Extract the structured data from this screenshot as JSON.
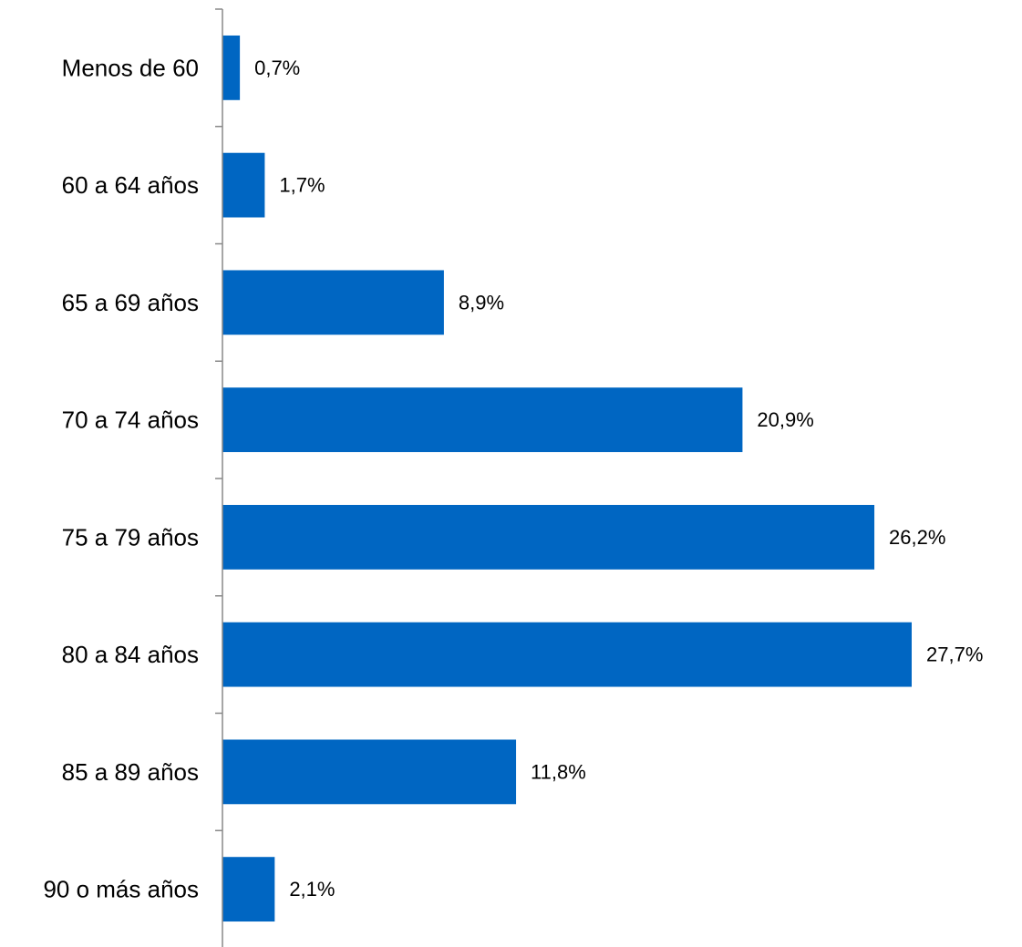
{
  "chart_data": {
    "type": "bar",
    "orientation": "horizontal",
    "title": "",
    "xlabel": "",
    "ylabel": "",
    "categories": [
      "Menos de 60",
      "60 a 64 años",
      "65 a 69 años",
      "70 a 74 años",
      "75 a 79 años",
      "80 a 84 años",
      "85 a 89 años",
      "90 o más años"
    ],
    "values": [
      0.7,
      1.7,
      8.9,
      20.9,
      26.2,
      27.7,
      11.8,
      2.1
    ],
    "value_labels": [
      "0,7%",
      "1,7%",
      "8,9%",
      "20,9%",
      "26,2%",
      "27,7%",
      "11,8%",
      "2,1%"
    ],
    "xlim": [
      0,
      27.7
    ],
    "grid": false,
    "legend": "none",
    "bar_color": "#0066C2",
    "axis_color": "#888888"
  }
}
